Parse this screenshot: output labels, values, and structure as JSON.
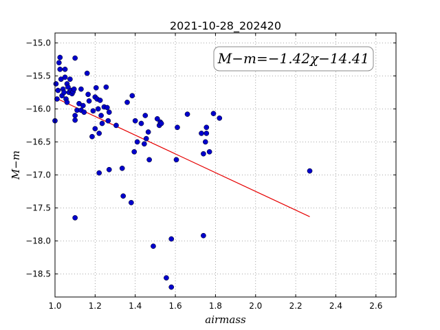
{
  "chart_data": {
    "type": "scatter",
    "title": "2021-10-28_202420",
    "xlabel": "airmass",
    "ylabel": "M−m",
    "xlim": [
      1.0,
      2.7
    ],
    "ylim": [
      -18.85,
      -14.85
    ],
    "xticks": [
      1.0,
      1.2,
      1.4,
      1.6,
      1.8,
      2.0,
      2.2,
      2.4,
      2.6
    ],
    "yticks": [
      -15.0,
      -15.5,
      -16.0,
      -16.5,
      -17.0,
      -17.5,
      -18.0,
      -18.5
    ],
    "x_tick_labels": [
      "1.0",
      "1.2",
      "1.4",
      "1.6",
      "1.8",
      "2.0",
      "2.2",
      "2.4",
      "2.6"
    ],
    "y_tick_labels": [
      "−15.0",
      "−15.5",
      "−16.0",
      "−16.5",
      "−17.0",
      "−17.5",
      "−18.0",
      "−18.5"
    ],
    "grid": true,
    "annotation": "M−m=−1.42χ−14.41",
    "colors": {
      "points": "#0000cc",
      "fit": "#e60000"
    },
    "fit_line": {
      "slope": -1.42,
      "intercept": -14.41,
      "x_start": 1.0,
      "x_end": 2.27
    },
    "points": [
      {
        "x": 1.0,
        "y": -16.18
      },
      {
        "x": 1.005,
        "y": -15.62
      },
      {
        "x": 1.01,
        "y": -15.85
      },
      {
        "x": 1.015,
        "y": -15.72
      },
      {
        "x": 1.02,
        "y": -15.3
      },
      {
        "x": 1.025,
        "y": -15.22
      },
      {
        "x": 1.025,
        "y": -15.4
      },
      {
        "x": 1.03,
        "y": -15.55
      },
      {
        "x": 1.035,
        "y": -15.8
      },
      {
        "x": 1.04,
        "y": -15.7
      },
      {
        "x": 1.045,
        "y": -15.75
      },
      {
        "x": 1.05,
        "y": -15.52
      },
      {
        "x": 1.05,
        "y": -15.4
      },
      {
        "x": 1.055,
        "y": -15.85
      },
      {
        "x": 1.06,
        "y": -15.62
      },
      {
        "x": 1.06,
        "y": -15.9
      },
      {
        "x": 1.065,
        "y": -15.67
      },
      {
        "x": 1.07,
        "y": -15.75
      },
      {
        "x": 1.075,
        "y": -15.55
      },
      {
        "x": 1.08,
        "y": -15.72
      },
      {
        "x": 1.085,
        "y": -15.77
      },
      {
        "x": 1.09,
        "y": -15.74
      },
      {
        "x": 1.095,
        "y": -15.7
      },
      {
        "x": 1.1,
        "y": -15.23
      },
      {
        "x": 1.1,
        "y": -16.1
      },
      {
        "x": 1.1,
        "y": -16.17
      },
      {
        "x": 1.1,
        "y": -17.65
      },
      {
        "x": 1.11,
        "y": -16.02
      },
      {
        "x": 1.12,
        "y": -15.92
      },
      {
        "x": 1.13,
        "y": -15.7
      },
      {
        "x": 1.13,
        "y": -16.02
      },
      {
        "x": 1.14,
        "y": -15.95
      },
      {
        "x": 1.145,
        "y": -16.05
      },
      {
        "x": 1.16,
        "y": -15.46
      },
      {
        "x": 1.165,
        "y": -15.78
      },
      {
        "x": 1.17,
        "y": -15.88
      },
      {
        "x": 1.185,
        "y": -16.42
      },
      {
        "x": 1.19,
        "y": -16.03
      },
      {
        "x": 1.2,
        "y": -15.82
      },
      {
        "x": 1.2,
        "y": -16.3
      },
      {
        "x": 1.205,
        "y": -15.68
      },
      {
        "x": 1.21,
        "y": -15.85
      },
      {
        "x": 1.215,
        "y": -16.0
      },
      {
        "x": 1.22,
        "y": -16.37
      },
      {
        "x": 1.22,
        "y": -16.97
      },
      {
        "x": 1.225,
        "y": -15.87
      },
      {
        "x": 1.23,
        "y": -16.1
      },
      {
        "x": 1.235,
        "y": -16.22
      },
      {
        "x": 1.245,
        "y": -15.97
      },
      {
        "x": 1.255,
        "y": -15.67
      },
      {
        "x": 1.26,
        "y": -15.98
      },
      {
        "x": 1.265,
        "y": -16.18
      },
      {
        "x": 1.27,
        "y": -16.05
      },
      {
        "x": 1.27,
        "y": -16.92
      },
      {
        "x": 1.305,
        "y": -16.25
      },
      {
        "x": 1.335,
        "y": -16.9
      },
      {
        "x": 1.34,
        "y": -17.32
      },
      {
        "x": 1.36,
        "y": -15.9
      },
      {
        "x": 1.38,
        "y": -17.42
      },
      {
        "x": 1.385,
        "y": -15.8
      },
      {
        "x": 1.395,
        "y": -16.65
      },
      {
        "x": 1.4,
        "y": -16.18
      },
      {
        "x": 1.41,
        "y": -16.5
      },
      {
        "x": 1.43,
        "y": -16.22
      },
      {
        "x": 1.445,
        "y": -16.53
      },
      {
        "x": 1.45,
        "y": -16.1
      },
      {
        "x": 1.455,
        "y": -16.45
      },
      {
        "x": 1.465,
        "y": -16.35
      },
      {
        "x": 1.47,
        "y": -16.77
      },
      {
        "x": 1.49,
        "y": -18.08
      },
      {
        "x": 1.51,
        "y": -16.15
      },
      {
        "x": 1.52,
        "y": -16.25
      },
      {
        "x": 1.525,
        "y": -16.2
      },
      {
        "x": 1.53,
        "y": -16.22
      },
      {
        "x": 1.555,
        "y": -18.56
      },
      {
        "x": 1.58,
        "y": -17.97
      },
      {
        "x": 1.58,
        "y": -18.7
      },
      {
        "x": 1.605,
        "y": -16.77
      },
      {
        "x": 1.61,
        "y": -16.28
      },
      {
        "x": 1.66,
        "y": -16.08
      },
      {
        "x": 1.73,
        "y": -16.37
      },
      {
        "x": 1.74,
        "y": -16.68
      },
      {
        "x": 1.74,
        "y": -17.92
      },
      {
        "x": 1.75,
        "y": -16.5
      },
      {
        "x": 1.755,
        "y": -16.37
      },
      {
        "x": 1.755,
        "y": -16.28
      },
      {
        "x": 1.77,
        "y": -16.65
      },
      {
        "x": 1.79,
        "y": -16.07
      },
      {
        "x": 1.82,
        "y": -16.14
      },
      {
        "x": 2.27,
        "y": -16.94
      }
    ]
  }
}
